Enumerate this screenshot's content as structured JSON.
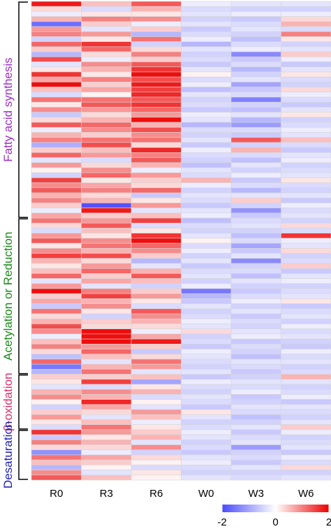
{
  "chart_data": {
    "type": "heatmap",
    "columns": [
      "R0",
      "R3",
      "R6",
      "W0",
      "W3",
      "W6"
    ],
    "n_rows": 95,
    "groups": [
      {
        "label": "Fatty acid synthesis",
        "start_row": 0,
        "end_row": 42,
        "color": "#9b30c8"
      },
      {
        "label": "Acetylation or Reduction",
        "start_row": 43,
        "end_row": 73,
        "color": "#1a8a1a"
      },
      {
        "label": "β-oxidation",
        "start_row": 74,
        "end_row": 84,
        "color": "#d9306a"
      },
      {
        "label": "Desaturation",
        "start_row": 85,
        "end_row": 94,
        "color": "#1f1fb4"
      }
    ],
    "color_scale": {
      "min": -2,
      "max": 2,
      "low_color": "#4a4aff",
      "mid_color": "#ffffff",
      "high_color": "#ee0000",
      "ticks": [
        -2,
        0,
        2
      ]
    },
    "values": {
      "R0": [
        1.8,
        0.3,
        -0.2,
        0.6,
        -1.6,
        0.8,
        1.0,
        -0.5,
        1.2,
        0.4,
        -0.8,
        1.4,
        -0.3,
        0.2,
        1.6,
        0.7,
        1.9,
        0.5,
        -0.4,
        1.1,
        0.2,
        0.9,
        -0.6,
        0.3,
        1.3,
        -0.2,
        0.6,
        1.0,
        -0.9,
        0.4,
        1.2,
        -0.3,
        0.8,
        0.1,
        -0.5,
        1.5,
        0.9,
        1.3,
        0.6,
        1.0,
        0.4,
        -0.2,
        0.7,
        1.1,
        0.3,
        -0.4,
        0.8,
        1.3,
        0.2,
        0.9,
        1.5,
        0.6,
        0.2,
        0.5,
        1.2,
        -0.3,
        0.8,
        1.9,
        0.4,
        0.7,
        -0.6,
        1.1,
        0.3,
        0.6,
        1.4,
        0.9,
        -0.2,
        0.5,
        1.0,
        0.3,
        -0.7,
        1.2,
        -1.5,
        -0.8,
        0.4,
        0.2,
        -0.3,
        0.6,
        0.9,
        0.1,
        -0.5,
        0.4,
        0.8,
        0.2,
        -0.4,
        1.6,
        -0.6,
        1.0,
        0.3,
        -1.2,
        1.1,
        0.5,
        -0.8,
        0.9,
        1.3
      ],
      "R3": [
        0.5,
        -0.4,
        0.2,
        1.0,
        0.4,
        -0.3,
        0.8,
        0.2,
        1.6,
        1.2,
        0.3,
        -0.2,
        0.9,
        0.6,
        0.2,
        1.0,
        0.4,
        0.7,
        0.1,
        1.1,
        1.3,
        0.8,
        0.3,
        0.6,
        1.2,
        0.9,
        0.4,
        1.1,
        1.4,
        0.5,
        0.8,
        -0.4,
        0.3,
        0.9,
        1.2,
        0.2,
        0.7,
        1.0,
        0.3,
        0.6,
        -1.9,
        1.8,
        0.4,
        0.8,
        1.3,
        0.5,
        0.2,
        0.9,
        1.1,
        0.6,
        1.4,
        0.3,
        0.8,
        1.2,
        0.4,
        0.7,
        -0.3,
        1.0,
        1.5,
        0.6,
        0.9,
        0.2,
        -0.5,
        0.4,
        0.3,
        1.9,
        1.9,
        1.9,
        0.8,
        1.2,
        0.5,
        -0.3,
        0.6,
        1.1,
        0.4,
        1.5,
        -0.4,
        0.9,
        0.6,
        1.7,
        0.7,
        0.3,
        -0.3,
        0.5,
        1.1,
        0.8,
        0.2,
        0.6,
        0.3,
        -0.2,
        0.7,
        0.4,
        0.1,
        -0.3,
        0.5
      ],
      "R6": [
        1.3,
        0.6,
        0.2,
        0.9,
        -0.2,
        0.4,
        -0.8,
        1.1,
        -0.5,
        0.3,
        1.0,
        0.4,
        1.3,
        1.6,
        1.9,
        1.4,
        1.8,
        1.5,
        1.7,
        1.3,
        1.6,
        1.2,
        0.8,
        1.9,
        0.6,
        1.4,
        0.9,
        1.1,
        0.3,
        1.7,
        1.0,
        1.3,
        0.6,
        -0.2,
        0.8,
        0.4,
        0.3,
        1.2,
        -0.6,
        0.2,
        0.8,
        -0.3,
        0.5,
        1.5,
        -0.4,
        0.2,
        1.6,
        1.9,
        1.2,
        0.9,
        0.4,
        -0.8,
        -0.3,
        0.6,
        1.3,
        0.5,
        -0.5,
        0.4,
        0.8,
        0.2,
        -0.4,
        1.3,
        0.9,
        0.6,
        0.3,
        -0.2,
        0.7,
        1.8,
        0.4,
        -0.6,
        0.3,
        1.1,
        0.8,
        -0.3,
        0.5,
        -1.0,
        0.2,
        0.6,
        -0.4,
        0.1,
        -0.3,
        0.8,
        0.5,
        -0.2,
        0.2,
        0.4,
        0.6,
        -0.3,
        0.9,
        -0.5,
        0.3,
        0.1,
        -0.4,
        0.2,
        0.1
      ],
      "W0": [
        -0.2,
        -0.4,
        -0.3,
        -0.5,
        -0.3,
        -0.6,
        -0.4,
        -0.2,
        -0.8,
        -0.3,
        -0.5,
        -0.4,
        -0.6,
        -0.3,
        0.1,
        -0.4,
        -0.2,
        -0.7,
        -0.3,
        -0.5,
        -0.4,
        -0.6,
        -0.2,
        -0.3,
        -0.8,
        -0.4,
        -0.5,
        -0.3,
        -0.6,
        -0.2,
        -0.4,
        -0.5,
        -0.7,
        -0.3,
        -0.4,
        0.6,
        -0.2,
        -0.5,
        -0.3,
        -0.4,
        -0.6,
        -0.3,
        -0.2,
        -0.7,
        -0.4,
        -0.5,
        -0.3,
        0.1,
        -0.4,
        -0.2,
        -0.5,
        -0.3,
        -0.6,
        -0.4,
        -0.3,
        -0.5,
        -0.2,
        -1.5,
        -0.8,
        -0.6,
        -0.3,
        -0.5,
        -0.4,
        -0.2,
        -0.3,
        0.3,
        -0.5,
        -0.4,
        -0.6,
        -0.2,
        -0.3,
        -0.4,
        -0.5,
        -0.3,
        -0.6,
        -0.2,
        -0.4,
        -0.5,
        -0.3,
        -0.4,
        -0.6,
        0.2,
        -0.3,
        -0.5,
        -0.4,
        -0.2,
        -0.3,
        -0.5,
        -0.4,
        -0.6,
        -0.3,
        -0.2,
        -0.4,
        -0.5,
        -0.3
      ],
      "W3": [
        -0.3,
        -0.5,
        -0.2,
        -0.6,
        -0.4,
        -0.3,
        -0.5,
        -0.7,
        -0.4,
        -0.2,
        -1.3,
        -0.6,
        -0.4,
        -0.8,
        -0.5,
        -0.3,
        -1.0,
        -0.6,
        -0.4,
        -1.4,
        -0.5,
        -0.7,
        -0.3,
        -0.8,
        -1.1,
        -0.4,
        -0.6,
        1.3,
        -0.5,
        0.6,
        -0.4,
        -0.7,
        -0.3,
        -0.5,
        -0.2,
        -0.6,
        -0.4,
        -0.8,
        -0.3,
        0.4,
        -0.5,
        -1.2,
        -0.6,
        -0.4,
        -0.3,
        -0.5,
        -0.7,
        -0.4,
        -1.0,
        -0.6,
        -0.3,
        -1.3,
        -0.5,
        -0.4,
        -0.7,
        -0.3,
        -0.5,
        -0.6,
        -0.4,
        -0.2,
        -0.5,
        -0.3,
        -0.6,
        -0.4,
        -0.5,
        -0.3,
        -0.2,
        -0.6,
        -0.4,
        -0.5,
        -0.7,
        -0.3,
        -0.4,
        -0.6,
        -0.5,
        -0.3,
        -0.4,
        -0.2,
        -0.6,
        -0.5,
        -0.3,
        -0.4,
        -0.7,
        -0.5,
        -0.3,
        -0.6,
        -0.4,
        -0.3,
        -1.1,
        -0.5,
        -0.4,
        -0.6,
        -0.3,
        -0.5,
        -0.4
      ],
      "W6": [
        -0.3,
        -0.5,
        -0.2,
        0.3,
        0.6,
        -0.4,
        1.0,
        0.2,
        -0.5,
        -0.3,
        0.4,
        -0.2,
        -0.6,
        -0.3,
        0.2,
        -0.4,
        -0.5,
        0.3,
        -0.2,
        -0.4,
        -0.6,
        -0.3,
        0.2,
        -0.5,
        -0.4,
        -0.2,
        -0.3,
        0.5,
        -0.4,
        -0.6,
        -0.3,
        -0.2,
        -0.5,
        -0.4,
        -0.3,
        0.2,
        -0.4,
        -0.5,
        -0.3,
        -0.6,
        -0.2,
        -0.4,
        -0.3,
        -0.5,
        0.3,
        -0.4,
        1.6,
        -0.2,
        -0.3,
        0.3,
        -0.5,
        -0.4,
        0.4,
        -0.6,
        -0.3,
        -0.2,
        -0.5,
        -0.4,
        -0.3,
        0.2,
        -0.6,
        -0.4,
        -0.3,
        -0.5,
        -0.2,
        -0.4,
        -0.3,
        -0.5,
        -0.6,
        -0.2,
        -0.4,
        -0.3,
        -0.5,
        -0.4,
        0.6,
        -0.3,
        -0.5,
        -0.4,
        -0.2,
        -0.6,
        -0.3,
        -0.4,
        -0.5,
        -0.3,
        0.4,
        -0.2,
        -0.5,
        -0.4,
        -0.3,
        -0.6,
        -0.2,
        -0.4,
        0.3,
        -0.5,
        -0.3
      ]
    }
  }
}
